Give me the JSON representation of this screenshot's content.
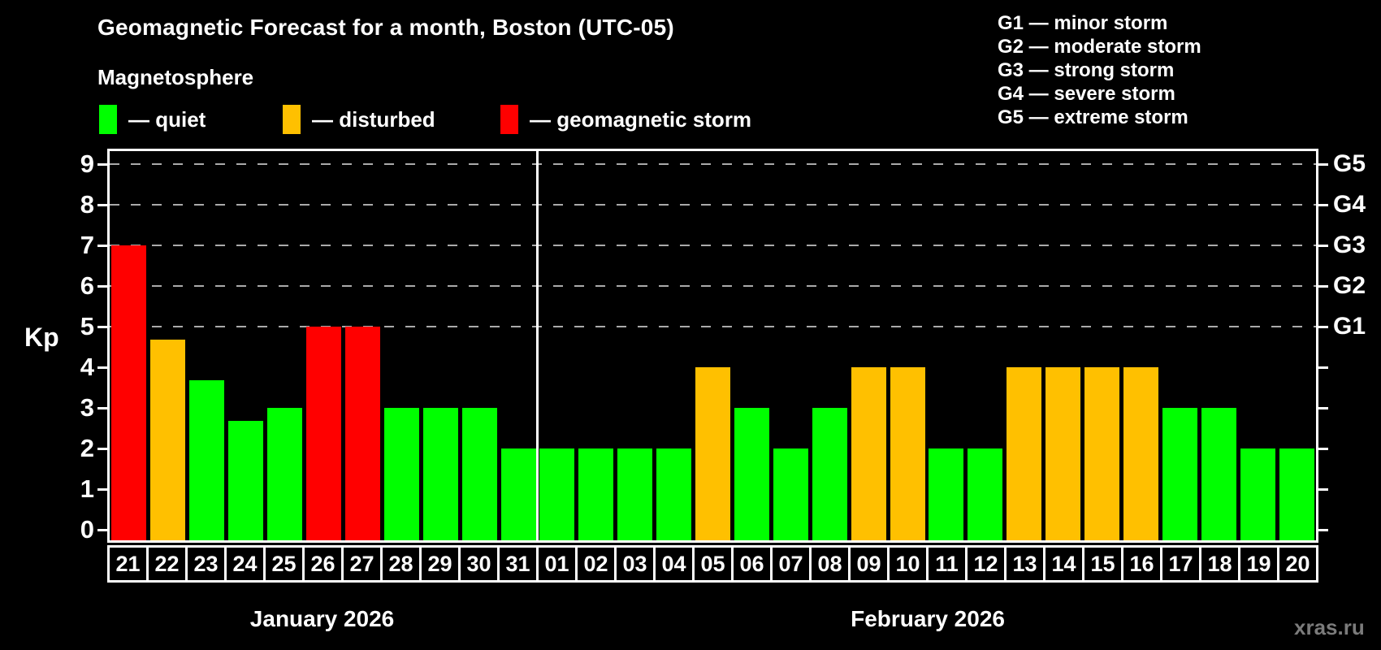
{
  "header": {
    "title": "Geomagnetic Forecast for a month, Boston (UTC-05)",
    "subtitle": "Magnetosphere"
  },
  "legend": {
    "dash": "—",
    "items": [
      {
        "key": "quiet",
        "label": "quiet",
        "color": "#00ff00"
      },
      {
        "key": "disturbed",
        "label": "disturbed",
        "color": "#ffc000"
      },
      {
        "key": "storm",
        "label": "geomagnetic storm",
        "color": "#ff0000"
      }
    ]
  },
  "g_scale_legend": [
    {
      "code": "G1",
      "desc": "minor storm"
    },
    {
      "code": "G2",
      "desc": "moderate storm"
    },
    {
      "code": "G3",
      "desc": "strong storm"
    },
    {
      "code": "G4",
      "desc": "severe storm"
    },
    {
      "code": "G5",
      "desc": "extreme storm"
    }
  ],
  "watermark": "xras.ru",
  "chart_data": {
    "type": "bar",
    "title": "Geomagnetic Forecast for a month, Boston (UTC-05)",
    "xlabel": "",
    "ylabel": "Kp",
    "ylim": [
      0,
      9
    ],
    "yticks": [
      0,
      1,
      2,
      3,
      4,
      5,
      6,
      7,
      8,
      9
    ],
    "gridlines_kp": [
      5,
      6,
      7,
      8,
      9
    ],
    "grid": "dashed horizontal at G-storm levels only",
    "legend_position": "top",
    "right_axis_labels": [
      {
        "label": "G1",
        "kp": 5
      },
      {
        "label": "G2",
        "kp": 6
      },
      {
        "label": "G3",
        "kp": 7
      },
      {
        "label": "G4",
        "kp": 8
      },
      {
        "label": "G5",
        "kp": 9
      }
    ],
    "months": [
      {
        "label": "January 2026",
        "days": 11
      },
      {
        "label": "February 2026",
        "days": 20
      }
    ],
    "categories": [
      "21",
      "22",
      "23",
      "24",
      "25",
      "26",
      "27",
      "28",
      "29",
      "30",
      "31",
      "01",
      "02",
      "03",
      "04",
      "05",
      "06",
      "07",
      "08",
      "09",
      "10",
      "11",
      "12",
      "13",
      "14",
      "15",
      "16",
      "17",
      "18",
      "19",
      "20"
    ],
    "values": [
      7,
      4.67,
      3.67,
      2.67,
      3,
      5,
      5,
      3,
      3,
      3,
      2,
      2,
      2,
      2,
      2,
      4,
      3,
      2,
      3,
      4,
      4,
      2,
      2,
      4,
      4,
      4,
      4,
      3,
      3,
      2,
      2
    ],
    "status": [
      "storm",
      "disturbed",
      "quiet",
      "quiet",
      "quiet",
      "storm",
      "storm",
      "quiet",
      "quiet",
      "quiet",
      "quiet",
      "quiet",
      "quiet",
      "quiet",
      "quiet",
      "disturbed",
      "quiet",
      "quiet",
      "quiet",
      "disturbed",
      "disturbed",
      "quiet",
      "quiet",
      "disturbed",
      "disturbed",
      "disturbed",
      "disturbed",
      "quiet",
      "quiet",
      "quiet",
      "quiet"
    ],
    "status_colors": {
      "quiet": "#00ff00",
      "disturbed": "#ffc000",
      "storm": "#ff0000"
    }
  }
}
